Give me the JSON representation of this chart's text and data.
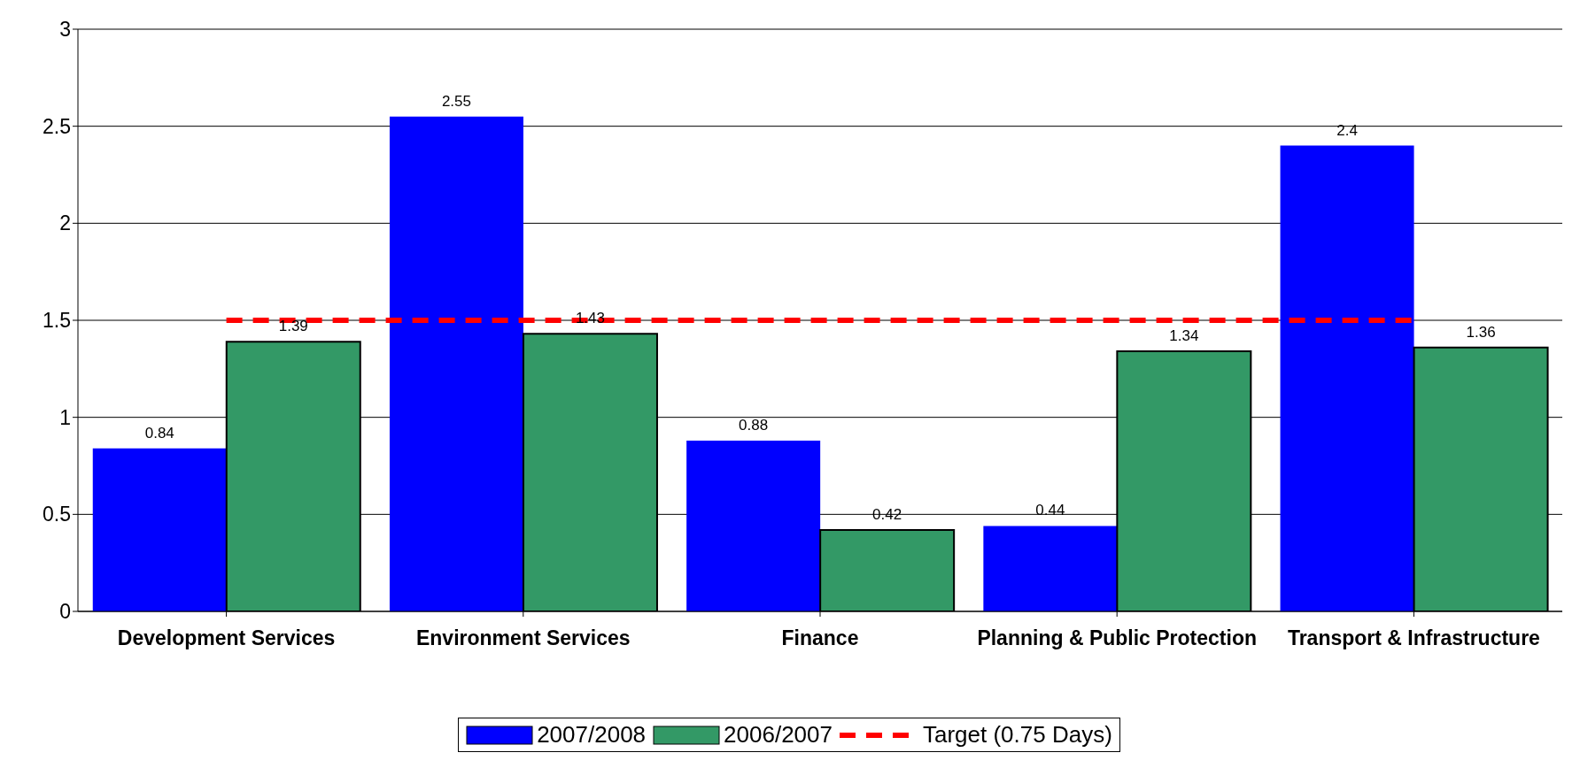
{
  "chart_data": {
    "type": "bar",
    "categories": [
      "Development Services",
      "Environment Services",
      "Finance",
      "Planning & Public Protection",
      "Transport & Infrastructure"
    ],
    "series": [
      {
        "name": "2007/2008",
        "color": "#0000ff",
        "values": [
          0.84,
          2.55,
          0.88,
          0.44,
          2.4
        ],
        "value_labels": [
          "0.84",
          "2.55",
          "0.88",
          "0.44",
          "2.4"
        ]
      },
      {
        "name": "2006/2007",
        "color": "#339966",
        "values": [
          1.39,
          1.43,
          0.42,
          1.34,
          1.36
        ],
        "value_labels": [
          "1.39",
          "1.43",
          "0.42",
          "1.34",
          "1.36"
        ]
      },
      {
        "name": "Target (0.75 Days)",
        "type": "line",
        "color": "#ff0000",
        "line_style": "dashed",
        "marker": "none",
        "values": [
          1.5,
          1.5,
          1.5,
          1.5,
          1.5
        ]
      }
    ],
    "ylim": [
      0,
      3
    ],
    "yticks": [
      0,
      0.5,
      1,
      1.5,
      2,
      2.5,
      3
    ],
    "grid": "y",
    "legend": "bottom"
  }
}
